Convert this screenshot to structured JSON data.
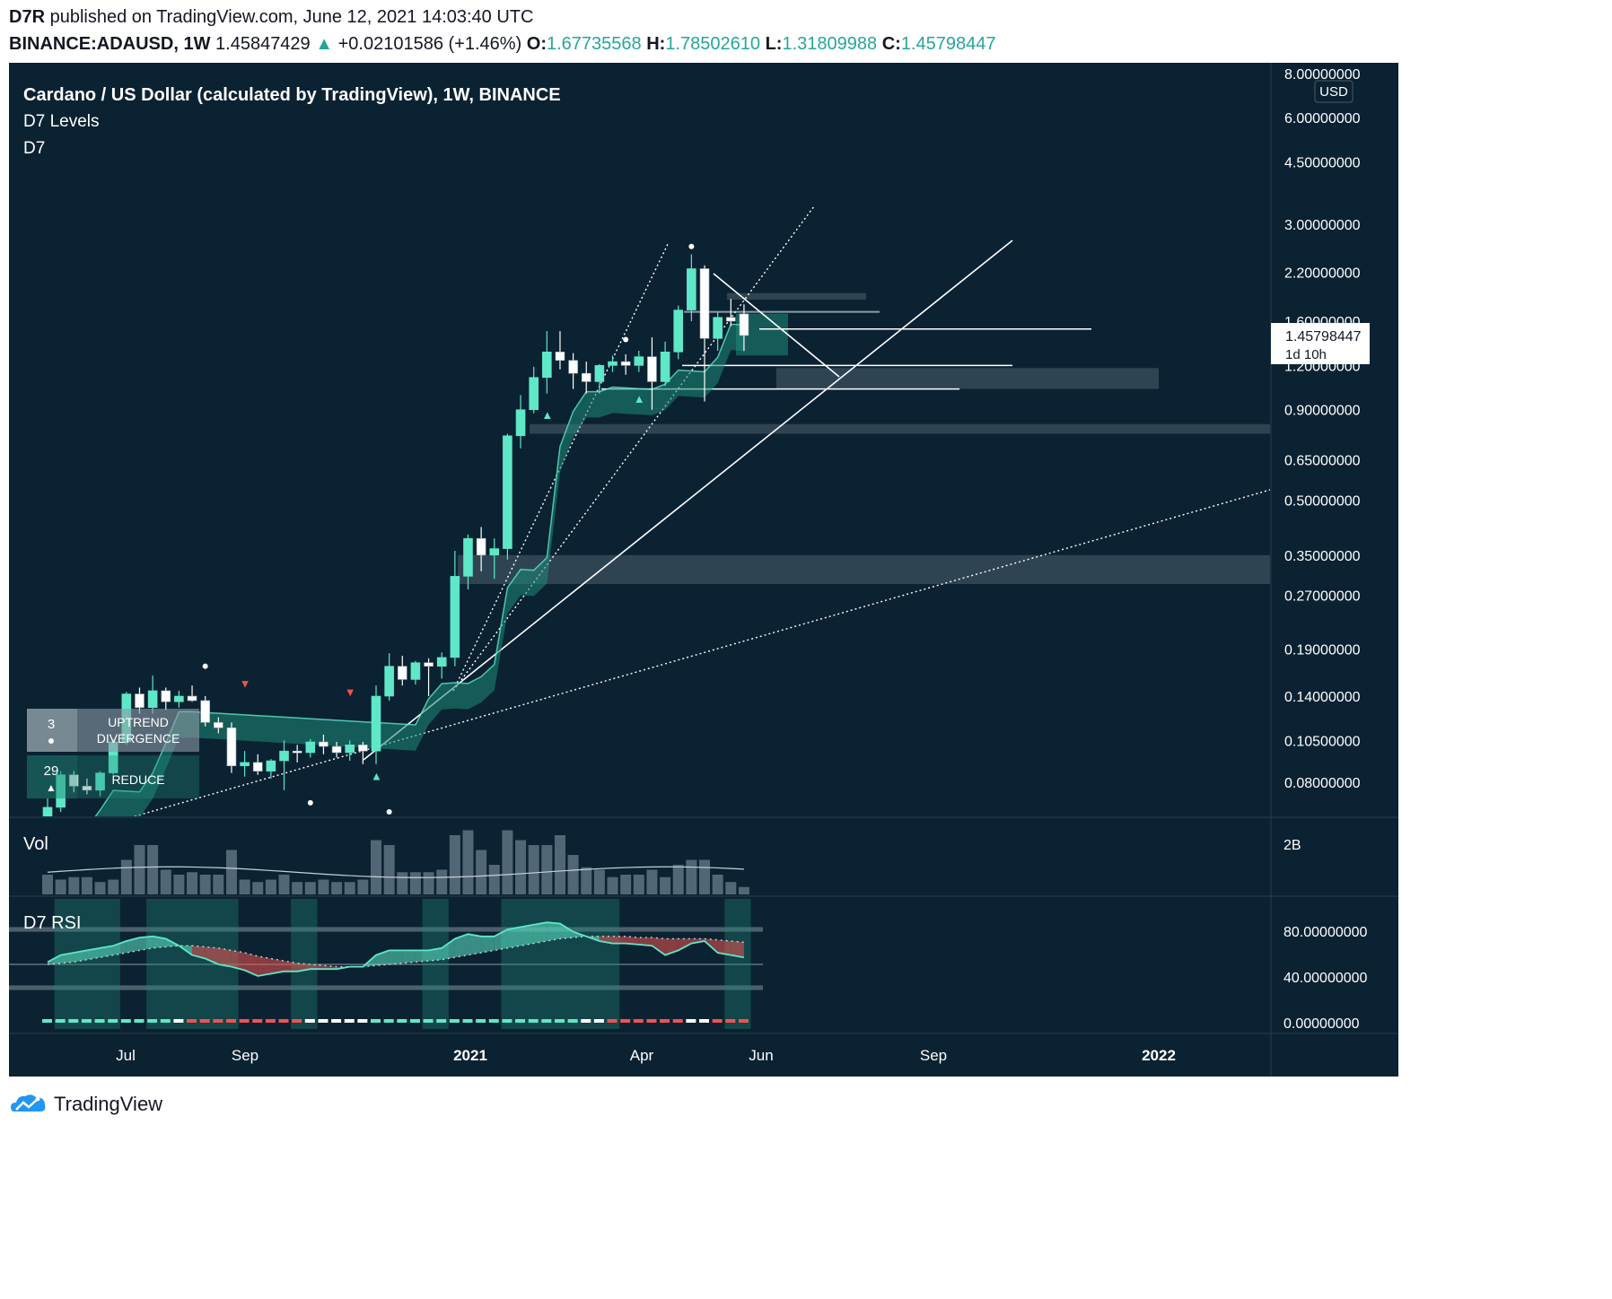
{
  "header": {
    "author": "D7R",
    "published": "published on TradingView.com, June 12, 2021 14:03:40 UTC",
    "symbol": "BINANCE:ADAUSD, 1W",
    "last": "1.45847429",
    "change": "+0.02101586 (+1.46%)",
    "o_label": "O:",
    "o": "1.67735568",
    "h_label": "H:",
    "h": "1.78502610",
    "l_label": "L:",
    "l": "1.31809988",
    "c_label": "C:",
    "c": "1.45798447"
  },
  "legend": {
    "title": "Cardano / US Dollar (calculated by TradingView), 1W, BINANCE",
    "ind1": "D7 Levels",
    "ind2": "D7"
  },
  "price_axis": {
    "currency": "USD",
    "ticks": [
      "8.00000000",
      "6.00000000",
      "4.50000000",
      "3.00000000",
      "2.20000000",
      "1.60000000",
      "1.20000000",
      "0.90000000",
      "0.65000000",
      "0.50000000",
      "0.35000000",
      "0.27000000",
      "0.19000000",
      "0.14000000",
      "0.10500000",
      "0.08000000"
    ],
    "current_price": "1.45798447",
    "countdown": "1d 10h"
  },
  "volume_pane": {
    "label": "Vol",
    "tick": "2B"
  },
  "rsi_pane": {
    "label": "D7 RSI",
    "ticks": [
      "80.00000000",
      "40.00000000",
      "0.00000000"
    ]
  },
  "time_axis": {
    "labels": [
      "Jul",
      "Sep",
      "2021",
      "Apr",
      "Jun",
      "Sep",
      "2022"
    ]
  },
  "signal_boxes": {
    "count1": "3",
    "text1": "UPTREND DIVERGENCE",
    "count2": "29",
    "text2": "REDUCE"
  },
  "footer": {
    "brand": "TradingView"
  },
  "colors": {
    "up": "#5ee8c8",
    "down": "#ffffff",
    "bg": "#0b2232",
    "signal_red": "#ef5350",
    "cloud": "#1f8a78"
  },
  "chart_data": {
    "type": "candlestick",
    "title": "Cardano / US Dollar (calculated by TradingView), 1W, BINANCE",
    "scale": "log",
    "ylim": [
      0.065,
      8.5
    ],
    "candles": [
      {
        "t": "2020-06-01",
        "o": 0.062,
        "h": 0.072,
        "l": 0.058,
        "c": 0.068
      },
      {
        "t": "2020-06-08",
        "o": 0.068,
        "h": 0.086,
        "l": 0.066,
        "c": 0.084
      },
      {
        "t": "2020-06-15",
        "o": 0.084,
        "h": 0.086,
        "l": 0.075,
        "c": 0.078
      },
      {
        "t": "2020-06-22",
        "o": 0.078,
        "h": 0.082,
        "l": 0.074,
        "c": 0.076
      },
      {
        "t": "2020-06-29",
        "o": 0.076,
        "h": 0.086,
        "l": 0.073,
        "c": 0.085
      },
      {
        "t": "2020-07-06",
        "o": 0.085,
        "h": 0.106,
        "l": 0.084,
        "c": 0.104
      },
      {
        "t": "2020-07-13",
        "o": 0.104,
        "h": 0.144,
        "l": 0.102,
        "c": 0.142
      },
      {
        "t": "2020-07-20",
        "o": 0.142,
        "h": 0.148,
        "l": 0.125,
        "c": 0.13
      },
      {
        "t": "2020-07-27",
        "o": 0.13,
        "h": 0.16,
        "l": 0.125,
        "c": 0.145
      },
      {
        "t": "2020-08-03",
        "o": 0.145,
        "h": 0.148,
        "l": 0.128,
        "c": 0.135
      },
      {
        "t": "2020-08-10",
        "o": 0.135,
        "h": 0.145,
        "l": 0.13,
        "c": 0.14
      },
      {
        "t": "2020-08-17",
        "o": 0.14,
        "h": 0.15,
        "l": 0.135,
        "c": 0.136
      },
      {
        "t": "2020-08-24",
        "o": 0.136,
        "h": 0.14,
        "l": 0.115,
        "c": 0.118
      },
      {
        "t": "2020-08-31",
        "o": 0.118,
        "h": 0.122,
        "l": 0.11,
        "c": 0.114
      },
      {
        "t": "2020-09-07",
        "o": 0.114,
        "h": 0.118,
        "l": 0.085,
        "c": 0.089
      },
      {
        "t": "2020-09-14",
        "o": 0.089,
        "h": 0.098,
        "l": 0.083,
        "c": 0.091
      },
      {
        "t": "2020-09-21",
        "o": 0.091,
        "h": 0.096,
        "l": 0.084,
        "c": 0.086
      },
      {
        "t": "2020-09-28",
        "o": 0.086,
        "h": 0.093,
        "l": 0.082,
        "c": 0.092
      },
      {
        "t": "2020-10-05",
        "o": 0.092,
        "h": 0.105,
        "l": 0.076,
        "c": 0.098
      },
      {
        "t": "2020-10-12",
        "o": 0.098,
        "h": 0.102,
        "l": 0.091,
        "c": 0.097
      },
      {
        "t": "2020-10-19",
        "o": 0.097,
        "h": 0.106,
        "l": 0.094,
        "c": 0.104
      },
      {
        "t": "2020-10-26",
        "o": 0.104,
        "h": 0.109,
        "l": 0.096,
        "c": 0.101
      },
      {
        "t": "2020-11-02",
        "o": 0.101,
        "h": 0.104,
        "l": 0.094,
        "c": 0.097
      },
      {
        "t": "2020-11-09",
        "o": 0.097,
        "h": 0.105,
        "l": 0.092,
        "c": 0.102
      },
      {
        "t": "2020-11-16",
        "o": 0.102,
        "h": 0.104,
        "l": 0.09,
        "c": 0.098
      },
      {
        "t": "2020-11-23",
        "o": 0.098,
        "h": 0.15,
        "l": 0.09,
        "c": 0.14
      },
      {
        "t": "2020-11-30",
        "o": 0.14,
        "h": 0.185,
        "l": 0.136,
        "c": 0.17
      },
      {
        "t": "2020-12-07",
        "o": 0.17,
        "h": 0.182,
        "l": 0.15,
        "c": 0.156
      },
      {
        "t": "2020-12-14",
        "o": 0.156,
        "h": 0.176,
        "l": 0.151,
        "c": 0.174
      },
      {
        "t": "2020-12-21",
        "o": 0.174,
        "h": 0.179,
        "l": 0.14,
        "c": 0.17
      },
      {
        "t": "2020-12-28",
        "o": 0.17,
        "h": 0.186,
        "l": 0.157,
        "c": 0.18
      },
      {
        "t": "2021-01-04",
        "o": 0.18,
        "h": 0.36,
        "l": 0.17,
        "c": 0.305
      },
      {
        "t": "2021-01-11",
        "o": 0.305,
        "h": 0.4,
        "l": 0.28,
        "c": 0.39
      },
      {
        "t": "2021-01-18",
        "o": 0.39,
        "h": 0.42,
        "l": 0.315,
        "c": 0.35
      },
      {
        "t": "2021-01-25",
        "o": 0.35,
        "h": 0.39,
        "l": 0.3,
        "c": 0.365
      },
      {
        "t": "2021-02-01",
        "o": 0.365,
        "h": 0.77,
        "l": 0.34,
        "c": 0.76
      },
      {
        "t": "2021-02-08",
        "o": 0.76,
        "h": 0.99,
        "l": 0.7,
        "c": 0.9
      },
      {
        "t": "2021-02-15",
        "o": 0.9,
        "h": 1.19,
        "l": 0.88,
        "c": 1.11
      },
      {
        "t": "2021-02-22",
        "o": 1.11,
        "h": 1.5,
        "l": 1.0,
        "c": 1.31
      },
      {
        "t": "2021-03-01",
        "o": 1.31,
        "h": 1.5,
        "l": 1.17,
        "c": 1.24
      },
      {
        "t": "2021-03-08",
        "o": 1.24,
        "h": 1.3,
        "l": 1.03,
        "c": 1.14
      },
      {
        "t": "2021-03-15",
        "o": 1.14,
        "h": 1.23,
        "l": 1.0,
        "c": 1.08
      },
      {
        "t": "2021-03-22",
        "o": 1.08,
        "h": 1.21,
        "l": 1.0,
        "c": 1.2
      },
      {
        "t": "2021-03-29",
        "o": 1.2,
        "h": 1.28,
        "l": 1.15,
        "c": 1.23
      },
      {
        "t": "2021-04-05",
        "o": 1.23,
        "h": 1.29,
        "l": 1.13,
        "c": 1.2
      },
      {
        "t": "2021-04-12",
        "o": 1.2,
        "h": 1.32,
        "l": 1.15,
        "c": 1.27
      },
      {
        "t": "2021-04-19",
        "o": 1.27,
        "h": 1.44,
        "l": 0.9,
        "c": 1.08
      },
      {
        "t": "2021-04-26",
        "o": 1.08,
        "h": 1.4,
        "l": 1.05,
        "c": 1.31
      },
      {
        "t": "2021-05-03",
        "o": 1.31,
        "h": 1.77,
        "l": 1.25,
        "c": 1.72
      },
      {
        "t": "2021-05-10",
        "o": 1.72,
        "h": 2.47,
        "l": 1.6,
        "c": 2.25
      },
      {
        "t": "2021-05-17",
        "o": 2.25,
        "h": 2.3,
        "l": 0.95,
        "c": 1.43
      },
      {
        "t": "2021-05-24",
        "o": 1.43,
        "h": 1.7,
        "l": 1.32,
        "c": 1.64
      },
      {
        "t": "2021-05-31",
        "o": 1.64,
        "h": 1.85,
        "l": 1.55,
        "c": 1.6
      },
      {
        "t": "2021-06-07",
        "o": 1.677,
        "h": 1.785,
        "l": 1.318,
        "c": 1.458
      }
    ],
    "volume": [
      0.4,
      0.3,
      0.35,
      0.35,
      0.25,
      0.3,
      0.7,
      1.0,
      1.0,
      0.5,
      0.4,
      0.45,
      0.4,
      0.4,
      0.9,
      0.3,
      0.25,
      0.3,
      0.4,
      0.25,
      0.25,
      0.3,
      0.25,
      0.25,
      0.3,
      1.1,
      1.0,
      0.45,
      0.45,
      0.45,
      0.5,
      1.2,
      1.3,
      0.9,
      0.6,
      1.3,
      1.1,
      1.0,
      1.0,
      1.2,
      0.8,
      0.55,
      0.5,
      0.35,
      0.4,
      0.4,
      0.5,
      0.35,
      0.6,
      0.7,
      0.7,
      0.4,
      0.25,
      0.15
    ],
    "rsi": [
      52,
      58,
      60,
      62,
      64,
      66,
      70,
      73,
      74,
      72,
      66,
      58,
      55,
      50,
      48,
      45,
      40,
      42,
      44,
      44,
      46,
      46,
      46,
      48,
      48,
      58,
      62,
      62,
      62,
      62,
      64,
      72,
      76,
      74,
      74,
      80,
      82,
      84,
      86,
      85,
      78,
      74,
      70,
      68,
      68,
      67,
      66,
      58,
      62,
      68,
      70,
      60,
      58,
      56
    ],
    "rsi_ma": [
      50,
      51,
      52,
      54,
      56,
      58,
      60,
      62,
      64,
      65,
      66,
      66,
      65,
      64,
      62,
      60,
      57,
      55,
      53,
      51,
      50,
      49,
      48,
      48,
      48,
      49,
      50,
      51,
      52,
      53,
      54,
      56,
      58,
      60,
      62,
      64,
      66,
      68,
      70,
      72,
      73,
      74,
      74,
      74,
      74,
      73,
      73,
      72,
      72,
      72,
      72,
      71,
      70,
      69
    ]
  }
}
